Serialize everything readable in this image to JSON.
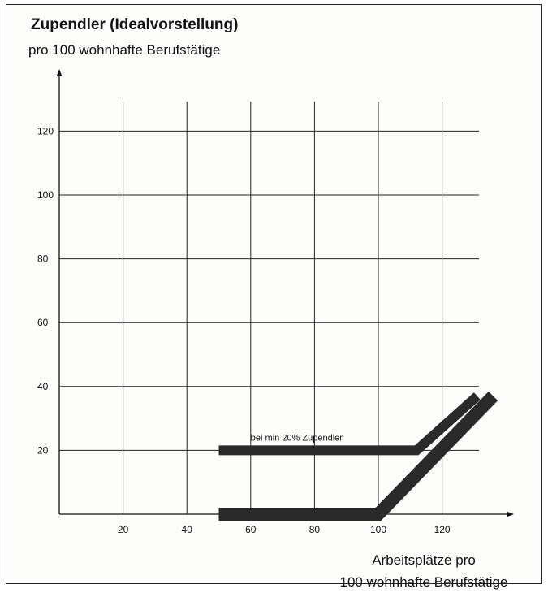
{
  "chart_data": {
    "type": "line",
    "title": "Zupendler (Idealvorstellung)",
    "subtitle": "pro 100 wohnhafte Berufstätige",
    "xlabel": "Arbeitsplätze pro\n100 wohnhafte Berufstätige",
    "ylabel": "",
    "xlim": [
      0,
      140
    ],
    "ylim": [
      0,
      140
    ],
    "x_ticks": [
      20,
      40,
      60,
      80,
      100,
      120
    ],
    "y_ticks": [
      20,
      40,
      60,
      80,
      100,
      120
    ],
    "grid": true,
    "series": [
      {
        "name": "",
        "color": "#2a2a2a",
        "points": [
          [
            50,
            20
          ],
          [
            112,
            20
          ],
          [
            131,
            37
          ]
        ]
      },
      {
        "name": "",
        "color": "#2a2a2a",
        "points": [
          [
            50,
            0
          ],
          [
            100,
            0
          ],
          [
            136,
            37
          ]
        ]
      }
    ],
    "annotations": [
      {
        "text": "bei min 20% Zupendler",
        "x": 60,
        "y": 20
      }
    ]
  }
}
